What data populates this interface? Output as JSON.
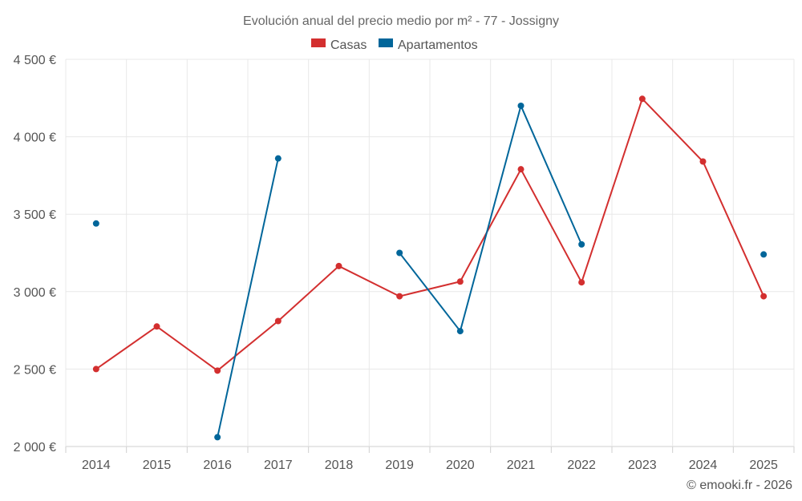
{
  "chart_data": {
    "type": "line",
    "title": "Evolución anual del precio medio por m² - 77 - Jossigny",
    "categories": [
      "2014",
      "2015",
      "2016",
      "2017",
      "2018",
      "2019",
      "2020",
      "2021",
      "2022",
      "2023",
      "2024",
      "2025"
    ],
    "ylim": [
      2000,
      4500
    ],
    "yticks": [
      2000,
      2500,
      3000,
      3500,
      4000,
      4500
    ],
    "ytick_labels": [
      "2 000 €",
      "2 500 €",
      "3 000 €",
      "3 500 €",
      "4 000 €",
      "4 500 €"
    ],
    "xlabel": "",
    "ylabel": "",
    "grid": true,
    "legend_position": "top-center",
    "series": [
      {
        "name": "Casas",
        "color": "#d32f2f",
        "values": [
          2500,
          2775,
          2490,
          2810,
          3165,
          2970,
          3065,
          3790,
          3060,
          4245,
          3840,
          2970
        ]
      },
      {
        "name": "Apartamentos",
        "color": "#01669a",
        "values": [
          3440,
          null,
          2060,
          3860,
          null,
          3250,
          2745,
          4200,
          3305,
          null,
          null,
          3240
        ]
      }
    ]
  },
  "credit": "© emooki.fr - 2026"
}
